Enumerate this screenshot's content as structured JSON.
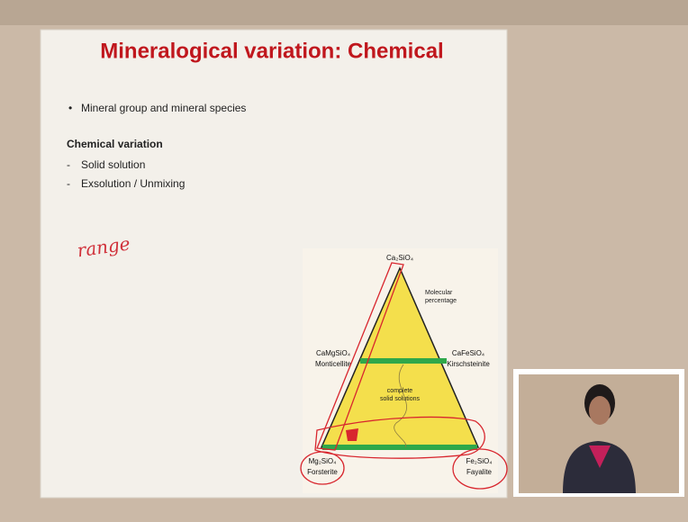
{
  "slide": {
    "title": "Mineralogical variation: Chemical",
    "bullet": "Mineral group and mineral species",
    "heading": "Chemical variation",
    "sub_items": [
      "Solid solution",
      "Exsolution / Unmixing"
    ],
    "handwriting": "range"
  },
  "diagram": {
    "apex": "Ca₂SiO₄",
    "note": [
      "Molecular",
      "percentage"
    ],
    "left_mid": {
      "formula": "CaMgSiO₄",
      "name": "Monticellite"
    },
    "right_mid": {
      "formula": "CaFeSiO₄",
      "name": "Kirschsteinite"
    },
    "center": [
      "complete",
      "solid solutions"
    ],
    "bottom_left": {
      "formula": "Mg₂SiO₄",
      "name": "Forsterite"
    },
    "bottom_right": {
      "formula": "Fe₂SiO₄",
      "name": "Fayalite"
    }
  }
}
